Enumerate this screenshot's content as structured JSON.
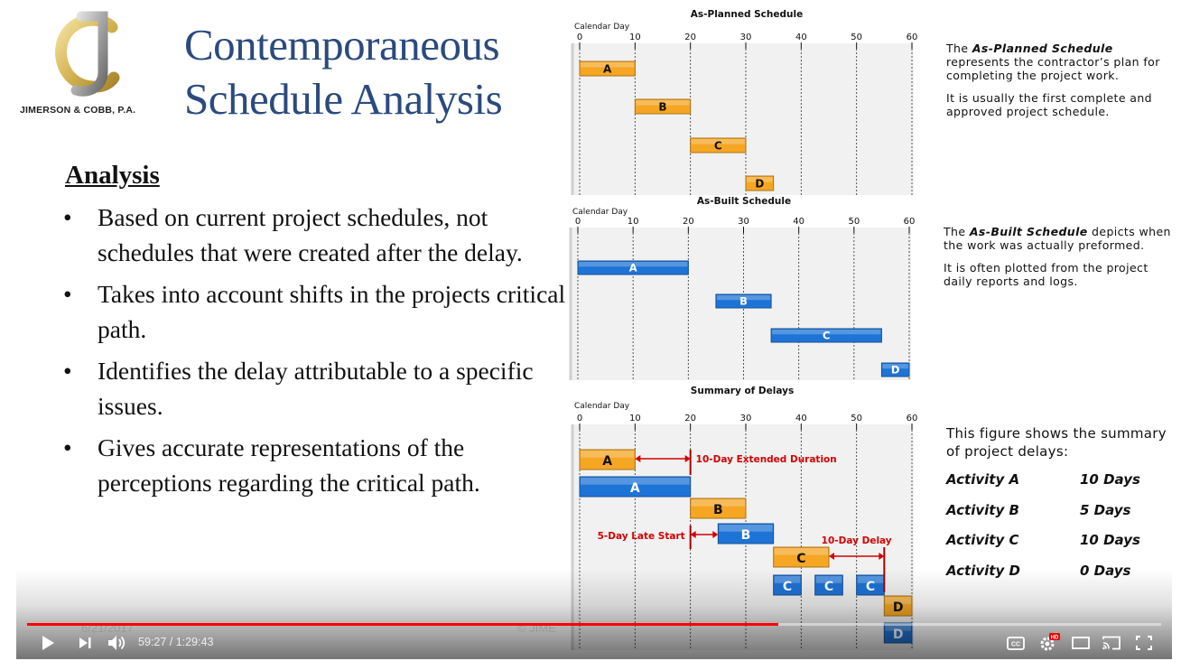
{
  "slide": {
    "logo_caption": "JIMERSON & COBB, P.A.",
    "title_line1": "Contemporaneous",
    "title_line2": "Schedule Analysis",
    "analysis_heading": "Analysis",
    "bullets": [
      "Based on current project schedules, not schedules that were created after the delay.",
      "Takes into account shifts in the projects critical path.",
      "Identifies the delay attributable to a specific issues.",
      "Gives accurate representations of the perceptions regarding the critical path."
    ],
    "planned_desc": {
      "p1_prefix": "The ",
      "p1_bold": "As-Planned Schedule",
      "p1_rest": " represents the contractor’s plan for completing the project work.",
      "p2": "It is usually the first complete and approved project schedule."
    },
    "built_desc": {
      "p1_prefix": "The ",
      "p1_bold": "As-Built Schedule",
      "p1_rest": " depicts when the work was actually preformed.",
      "p2": "It is often plotted from the project daily reports and logs."
    },
    "summary_text": "This figure shows the summary of project delays:",
    "summary_rows": [
      {
        "activity": "Activity A",
        "days": "10 Days"
      },
      {
        "activity": "Activity B",
        "days": "5 Days"
      },
      {
        "activity": "Activity C",
        "days": "10 Days"
      },
      {
        "activity": "Activity D",
        "days": "0 Days"
      }
    ],
    "faint_date": "6/21/2017",
    "faint_copyright": "© JIME"
  },
  "chart_data": [
    {
      "type": "bar",
      "title": "As-Planned Schedule",
      "xlabel": "Calendar Day",
      "ticks": [
        0,
        10,
        20,
        30,
        40,
        50,
        60
      ],
      "xlim": [
        0,
        60
      ],
      "color": "#f5a623",
      "bars": [
        {
          "label": "A",
          "start": 0,
          "end": 10
        },
        {
          "label": "B",
          "start": 10,
          "end": 20
        },
        {
          "label": "C",
          "start": 20,
          "end": 30
        },
        {
          "label": "D",
          "start": 30,
          "end": 35
        }
      ]
    },
    {
      "type": "bar",
      "title": "As-Built Schedule",
      "xlabel": "Calendar Day",
      "ticks": [
        0,
        10,
        20,
        30,
        40,
        50,
        60
      ],
      "xlim": [
        0,
        60
      ],
      "color": "#1e73d6",
      "bars": [
        {
          "label": "A",
          "start": 0,
          "end": 20
        },
        {
          "label": "B",
          "start": 25,
          "end": 35
        },
        {
          "label": "C",
          "start": 35,
          "end": 55
        },
        {
          "label": "D",
          "start": 55,
          "end": 60
        }
      ]
    },
    {
      "type": "bar",
      "title": "Summary of Delays",
      "xlabel": "Calendar Day",
      "ticks": [
        0,
        10,
        20,
        30,
        40,
        50,
        60
      ],
      "xlim": [
        0,
        60
      ],
      "planned_color": "#f5a623",
      "built_color": "#1e73d6",
      "bars": [
        {
          "label": "A",
          "kind": "planned",
          "start": 0,
          "end": 10
        },
        {
          "label": "A",
          "kind": "built",
          "start": 0,
          "end": 20
        },
        {
          "label": "B",
          "kind": "planned",
          "start": 20,
          "end": 30
        },
        {
          "label": "B",
          "kind": "built",
          "start": 25,
          "end": 35
        },
        {
          "label": "C",
          "kind": "planned",
          "start": 35,
          "end": 45
        },
        {
          "label": "C",
          "kind": "built",
          "start": 35,
          "end": 40
        },
        {
          "label": "C",
          "kind": "built",
          "start": 42.5,
          "end": 47.5
        },
        {
          "label": "C",
          "kind": "built",
          "start": 50,
          "end": 55
        },
        {
          "label": "D",
          "kind": "planned",
          "start": 55,
          "end": 60
        },
        {
          "label": "D",
          "kind": "built",
          "start": 55,
          "end": 60
        }
      ],
      "annotations": [
        {
          "text": "10-Day Extended Duration",
          "from": 10,
          "to": 20
        },
        {
          "text": "5-Day Late Start",
          "from": 20,
          "to": 25
        },
        {
          "text": "10-Day Delay",
          "from": 45,
          "to": 55
        }
      ]
    }
  ],
  "player": {
    "current_time": "59:27",
    "duration": "1:29:43",
    "time_display": "59:27 / 1:29:43",
    "progress_fraction": 0.6626,
    "accent_color": "#ff0000",
    "icons": [
      "play-icon",
      "next-icon",
      "volume-icon",
      "captions-icon",
      "settings-icon",
      "theater-icon",
      "cast-icon",
      "fullscreen-icon"
    ],
    "hd_badge": "HD",
    "cc_label": "CC"
  }
}
